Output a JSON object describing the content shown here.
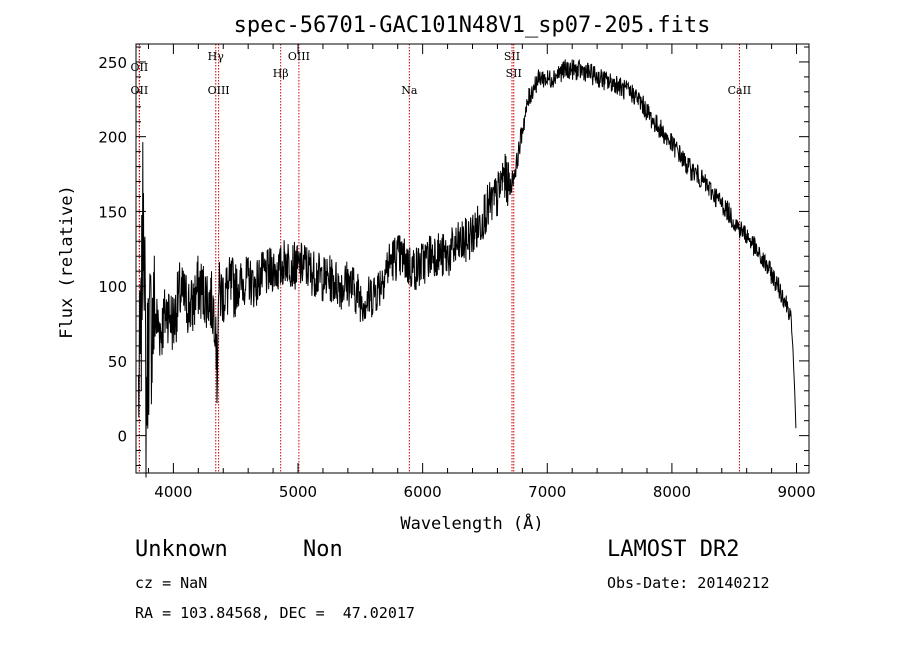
{
  "chart_data": {
    "type": "line",
    "title": "spec-56701-GAC101N48V1_sp07-205.fits",
    "xlabel": "Wavelength (Å)",
    "ylabel": "Flux (relative)",
    "xlim": [
      3700,
      9100
    ],
    "ylim": [
      -25,
      262
    ],
    "x_ticks": [
      4000,
      5000,
      6000,
      7000,
      8000,
      9000
    ],
    "y_ticks": [
      0,
      50,
      100,
      150,
      200,
      250
    ],
    "grid": false,
    "line_color": "#000000",
    "marker_color": "#cc0000",
    "series": [
      {
        "x": [
          3720,
          3740,
          3760,
          3780,
          3800,
          3850,
          3900,
          3950,
          4000,
          4050,
          4100,
          4150,
          4200,
          4250,
          4300,
          4340,
          4350,
          4360,
          4400,
          4450,
          4500,
          4550,
          4600,
          4650,
          4700,
          4750,
          4800,
          4850,
          4900,
          4950,
          5000,
          5050,
          5100,
          5150,
          5200,
          5250,
          5300,
          5350,
          5400,
          5450,
          5500,
          5550,
          5600,
          5650,
          5700,
          5750,
          5800,
          5850,
          5900,
          5950,
          6000,
          6050,
          6100,
          6150,
          6200,
          6250,
          6300,
          6350,
          6400,
          6450,
          6500,
          6550,
          6600,
          6650,
          6700,
          6750,
          6800,
          6850,
          6900,
          6950,
          7000,
          7050,
          7100,
          7150,
          7200,
          7250,
          7300,
          7350,
          7400,
          7450,
          7500,
          7550,
          7600,
          7650,
          7700,
          7750,
          7800,
          7850,
          7900,
          7950,
          8000,
          8050,
          8100,
          8150,
          8200,
          8250,
          8300,
          8350,
          8400,
          8450,
          8500,
          8550,
          8600,
          8650,
          8700,
          8750,
          8800,
          8850,
          8900,
          8950,
          8970,
          8985,
          8995
        ],
        "y": [
          30,
          60,
          175,
          20,
          65,
          80,
          70,
          85,
          75,
          95,
          90,
          85,
          100,
          95,
          90,
          80,
          30,
          95,
          95,
          98,
          100,
          102,
          105,
          100,
          107,
          108,
          112,
          110,
          118,
          115,
          112,
          115,
          110,
          108,
          105,
          105,
          103,
          100,
          103,
          98,
          92,
          90,
          95,
          100,
          110,
          118,
          120,
          118,
          113,
          112,
          115,
          120,
          123,
          120,
          120,
          125,
          128,
          130,
          135,
          140,
          150,
          155,
          160,
          175,
          165,
          180,
          205,
          225,
          235,
          240,
          238,
          240,
          243,
          245,
          245,
          244,
          244,
          242,
          240,
          238,
          236,
          236,
          232,
          230,
          228,
          223,
          217,
          210,
          206,
          200,
          195,
          190,
          183,
          178,
          175,
          170,
          165,
          160,
          155,
          150,
          143,
          138,
          134,
          128,
          120,
          115,
          108,
          100,
          92,
          82,
          60,
          30,
          5
        ]
      }
    ],
    "line_markers": [
      {
        "label": "OII",
        "x": 3727
      },
      {
        "label": "OII",
        "x": 3727
      },
      {
        "label": "Hγ",
        "x": 4340
      },
      {
        "label": "OIII",
        "x": 4363
      },
      {
        "label": "Hβ",
        "x": 4861
      },
      {
        "label": "OIII",
        "x": 5007
      },
      {
        "label": "Na",
        "x": 5893
      },
      {
        "label": "SII",
        "x": 6717
      },
      {
        "label": "SII",
        "x": 6731
      },
      {
        "label": "CaII",
        "x": 8542
      }
    ]
  },
  "info": {
    "class_label": "Unknown",
    "subclass_label": "Non",
    "survey": "LAMOST DR2",
    "redshift": "cz = NaN",
    "obs_date": "Obs-Date: 20140212",
    "coords": "RA = 103.84568, DEC =  47.02017"
  }
}
